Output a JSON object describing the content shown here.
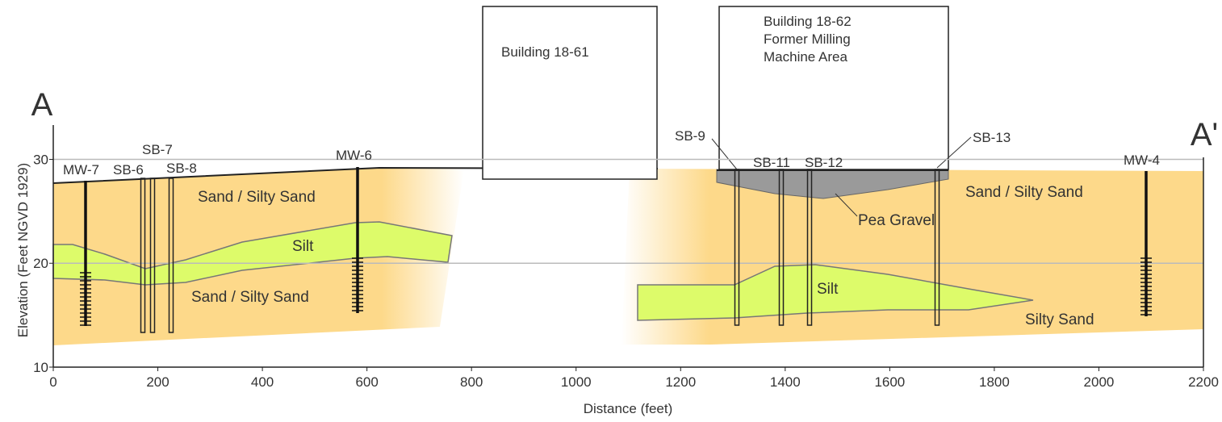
{
  "section": {
    "start": "A",
    "end": "A'"
  },
  "buildings": [
    {
      "lines": [
        "Building 18-61"
      ]
    },
    {
      "lines": [
        "Building 18-62",
        "Former Milling",
        "Machine Area"
      ]
    }
  ],
  "wells": [
    "MW-7",
    "SB-6",
    "SB-7",
    "SB-8",
    "MW-6",
    "SB-9",
    "SB-11",
    "SB-12",
    "SB-13",
    "MW-4"
  ],
  "layers": [
    "Sand / Silty Sand",
    "Silt",
    "Sand / Silty Sand",
    "Silt",
    "Pea Gravel",
    "Silty Sand",
    "Sand / Silty Sand"
  ],
  "axes": {
    "x_title": "Distance (feet)",
    "y_title": "Elevation (Feet NGVD 1929)",
    "xlim": [
      0,
      2200
    ],
    "ylim": [
      10,
      33.3
    ],
    "xticks": [
      0,
      200,
      400,
      600,
      800,
      1000,
      1200,
      1400,
      1600,
      1800,
      2000,
      2200
    ],
    "yticks": [
      10,
      20,
      30
    ]
  }
}
